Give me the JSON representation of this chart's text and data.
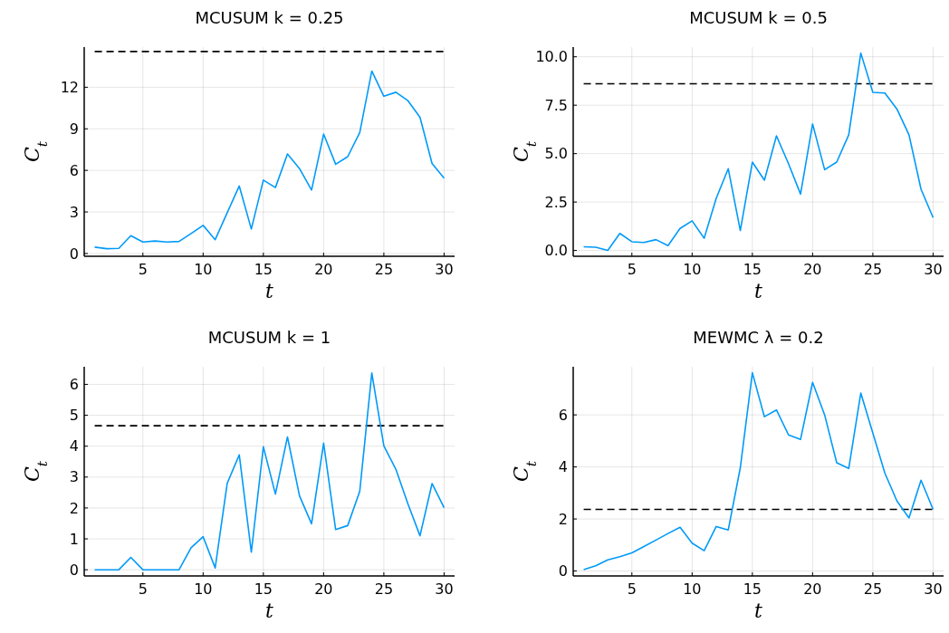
{
  "chart_data": [
    {
      "type": "line",
      "title": "MCUSUM k = 0.25",
      "xlabel": "t",
      "ylabel": "C$_{t}$",
      "x": [
        1,
        2,
        3,
        4,
        5,
        6,
        7,
        8,
        9,
        10,
        11,
        12,
        13,
        14,
        15,
        16,
        17,
        18,
        19,
        20,
        21,
        22,
        23,
        24,
        25,
        26,
        27,
        28,
        29,
        30
      ],
      "series": [
        {
          "color": "#009af9",
          "values": [
            0.46,
            0.35,
            0.37,
            1.29,
            0.83,
            0.9,
            0.83,
            0.87,
            1.44,
            2.03,
            1.0,
            2.95,
            4.87,
            1.77,
            5.3,
            4.76,
            7.18,
            6.13,
            4.58,
            8.62,
            6.44,
            6.99,
            8.73,
            13.17,
            11.35,
            11.64,
            11.03,
            9.83,
            6.5,
            5.44
          ]
        }
      ],
      "ref_lines": [
        {
          "axis": "y",
          "value": 14.58,
          "color": "#000000",
          "line_style": "dashed"
        }
      ],
      "xlim": [
        0.13,
        30.87
      ],
      "ylim": [
        -0.2,
        14.9
      ],
      "xticks": [
        5,
        10,
        15,
        20,
        25,
        30
      ],
      "yticks": [
        0,
        3,
        6,
        9,
        12
      ],
      "grid": true,
      "marker": "none",
      "line_style": "solid"
    },
    {
      "type": "line",
      "title": "MCUSUM k = 0.5",
      "xlabel": "t",
      "ylabel": "C$_{t}$",
      "x": [
        1,
        2,
        3,
        4,
        5,
        6,
        7,
        8,
        9,
        10,
        11,
        12,
        13,
        14,
        15,
        16,
        17,
        18,
        19,
        20,
        21,
        22,
        23,
        24,
        25,
        26,
        27,
        28,
        29,
        30
      ],
      "series": [
        {
          "color": "#009af9",
          "values": [
            0.19,
            0.17,
            0.0,
            0.88,
            0.45,
            0.41,
            0.56,
            0.25,
            1.14,
            1.53,
            0.63,
            2.69,
            4.22,
            1.03,
            4.56,
            3.63,
            5.92,
            4.48,
            2.91,
            6.53,
            4.17,
            4.56,
            5.97,
            10.19,
            8.16,
            8.13,
            7.3,
            5.97,
            3.16,
            1.7
          ]
        }
      ],
      "ref_lines": [
        {
          "axis": "y",
          "value": 8.61,
          "color": "#000000",
          "line_style": "dashed"
        }
      ],
      "xlim": [
        0.13,
        30.87
      ],
      "ylim": [
        -0.3,
        10.5
      ],
      "xticks": [
        5,
        10,
        15,
        20,
        25,
        30
      ],
      "yticks": [
        {
          "value": 0,
          "label": "0.0"
        },
        {
          "value": 2.5,
          "label": "2.5"
        },
        {
          "value": 5,
          "label": "5.0"
        },
        {
          "value": 7.5,
          "label": "7.5"
        },
        {
          "value": 10,
          "label": "10.0"
        }
      ],
      "grid": true,
      "marker": "none",
      "line_style": "solid"
    },
    {
      "type": "line",
      "title": "MCUSUM k = 1",
      "xlabel": "t",
      "ylabel": "C$_{t}$",
      "x": [
        1,
        2,
        3,
        4,
        5,
        6,
        7,
        8,
        9,
        10,
        11,
        12,
        13,
        14,
        15,
        16,
        17,
        18,
        19,
        20,
        21,
        22,
        23,
        24,
        25,
        26,
        27,
        28,
        29,
        30
      ],
      "series": [
        {
          "color": "#009af9",
          "values": [
            0,
            0,
            0,
            0.4,
            0,
            0,
            0,
            0,
            0.71,
            1.07,
            0.06,
            2.8,
            3.72,
            0.57,
            3.98,
            2.45,
            4.3,
            2.39,
            1.49,
            4.1,
            1.3,
            1.43,
            2.54,
            6.37,
            4.01,
            3.25,
            2.13,
            1.1,
            2.79,
            2.01
          ]
        }
      ],
      "ref_lines": [
        {
          "axis": "y",
          "value": 4.66,
          "color": "#000000",
          "line_style": "dashed"
        }
      ],
      "xlim": [
        0.13,
        30.87
      ],
      "ylim": [
        -0.2,
        6.57
      ],
      "xticks": [
        5,
        10,
        15,
        20,
        25,
        30
      ],
      "yticks": [
        0,
        1,
        2,
        3,
        4,
        5,
        6
      ],
      "grid": true,
      "marker": "none",
      "line_style": "solid"
    },
    {
      "type": "line",
      "title": "MEWMC λ = 0.2",
      "xlabel": "t",
      "ylabel": "C$_{t}$",
      "x": [
        1,
        2,
        3,
        4,
        5,
        6,
        7,
        8,
        9,
        10,
        11,
        12,
        13,
        14,
        15,
        16,
        17,
        18,
        19,
        20,
        21,
        22,
        23,
        24,
        25,
        26,
        27,
        28,
        29,
        30
      ],
      "series": [
        {
          "color": "#009af9",
          "values": [
            0.05,
            0.2,
            0.43,
            0.55,
            0.7,
            0.94,
            1.19,
            1.44,
            1.68,
            1.07,
            0.78,
            1.71,
            1.58,
            3.97,
            7.62,
            5.93,
            6.19,
            5.23,
            5.06,
            7.25,
            6.0,
            4.16,
            3.94,
            6.84,
            5.3,
            3.76,
            2.69,
            2.04,
            3.49,
            2.37
          ]
        }
      ],
      "ref_lines": [
        {
          "axis": "y",
          "value": 2.37,
          "color": "#000000",
          "line_style": "dashed"
        }
      ],
      "xlim": [
        0.13,
        30.87
      ],
      "ylim": [
        -0.19,
        7.85
      ],
      "xticks": [
        5,
        10,
        15,
        20,
        25,
        30
      ],
      "yticks": [
        0,
        2,
        4,
        6
      ],
      "grid": true,
      "marker": "none",
      "line_style": "solid"
    }
  ]
}
